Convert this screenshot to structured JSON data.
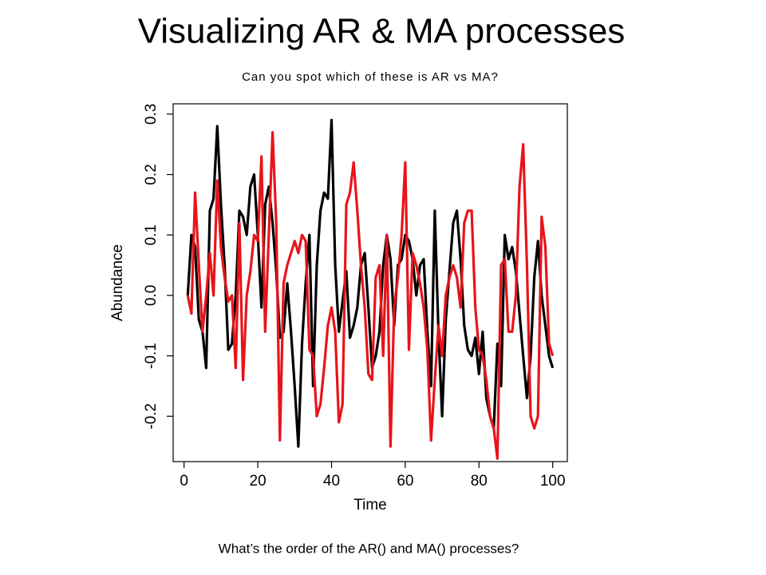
{
  "title": "Visualizing AR & MA processes",
  "caption": "What’s the order of the AR() and MA() processes?",
  "chart_data": {
    "type": "line",
    "title": "Can you spot which of these is AR vs MA?",
    "x_label": "Time",
    "y_label": "Abundance",
    "x": [
      1,
      2,
      3,
      4,
      5,
      6,
      7,
      8,
      9,
      10,
      11,
      12,
      13,
      14,
      15,
      16,
      17,
      18,
      19,
      20,
      21,
      22,
      23,
      24,
      25,
      26,
      27,
      28,
      29,
      30,
      31,
      32,
      33,
      34,
      35,
      36,
      37,
      38,
      39,
      40,
      41,
      42,
      43,
      44,
      45,
      46,
      47,
      48,
      49,
      50,
      51,
      52,
      53,
      54,
      55,
      56,
      57,
      58,
      59,
      60,
      61,
      62,
      63,
      64,
      65,
      66,
      67,
      68,
      69,
      70,
      71,
      72,
      73,
      74,
      75,
      76,
      77,
      78,
      79,
      80,
      81,
      82,
      83,
      84,
      85,
      86,
      87,
      88,
      89,
      90,
      91,
      92,
      93,
      94,
      95,
      96,
      97,
      98,
      99,
      100
    ],
    "series": [
      {
        "color": "#000000",
        "values": [
          0.0,
          0.1,
          0.08,
          -0.04,
          -0.06,
          -0.12,
          0.14,
          0.16,
          0.28,
          0.15,
          0.05,
          -0.09,
          -0.08,
          0.0,
          0.14,
          0.13,
          0.1,
          0.18,
          0.2,
          0.1,
          -0.02,
          0.15,
          0.18,
          0.12,
          0.04,
          -0.07,
          -0.06,
          0.02,
          -0.06,
          -0.15,
          -0.25,
          -0.08,
          0.02,
          0.1,
          -0.15,
          0.05,
          0.14,
          0.17,
          0.16,
          0.29,
          0.05,
          -0.06,
          -0.01,
          0.04,
          -0.07,
          -0.05,
          -0.02,
          0.05,
          0.07,
          -0.02,
          -0.12,
          -0.1,
          -0.06,
          0.05,
          0.1,
          0.06,
          -0.05,
          0.05,
          0.06,
          0.1,
          0.09,
          0.06,
          0.0,
          0.05,
          0.06,
          -0.06,
          -0.15,
          0.14,
          -0.06,
          -0.2,
          -0.04,
          0.04,
          0.12,
          0.14,
          0.06,
          -0.05,
          -0.09,
          -0.1,
          -0.07,
          -0.13,
          -0.06,
          -0.17,
          -0.2,
          -0.22,
          -0.08,
          -0.15,
          0.1,
          0.06,
          0.08,
          0.04,
          -0.03,
          -0.1,
          -0.17,
          -0.1,
          0.03,
          0.09,
          0.0,
          -0.05,
          -0.1,
          -0.12
        ]
      },
      {
        "color": "#e8141a",
        "values": [
          0.0,
          -0.03,
          0.17,
          0.05,
          -0.06,
          0.0,
          0.07,
          0.0,
          0.19,
          0.08,
          0.03,
          -0.01,
          0.0,
          -0.12,
          0.12,
          -0.14,
          0.0,
          0.04,
          0.1,
          0.09,
          0.23,
          -0.06,
          0.1,
          0.27,
          0.12,
          -0.24,
          0.02,
          0.05,
          0.07,
          0.09,
          0.07,
          0.1,
          0.09,
          -0.09,
          -0.1,
          -0.2,
          -0.18,
          -0.12,
          -0.05,
          -0.02,
          -0.06,
          -0.21,
          -0.18,
          0.15,
          0.17,
          0.22,
          0.14,
          0.05,
          -0.02,
          -0.13,
          -0.14,
          0.03,
          0.05,
          -0.1,
          0.1,
          -0.25,
          -0.02,
          0.03,
          0.1,
          0.22,
          -0.09,
          0.07,
          0.05,
          0.02,
          -0.02,
          -0.09,
          -0.24,
          -0.14,
          -0.05,
          -0.1,
          0.0,
          0.03,
          0.05,
          0.03,
          -0.02,
          0.12,
          0.14,
          0.14,
          -0.02,
          -0.09,
          -0.1,
          -0.14,
          -0.2,
          -0.22,
          -0.27,
          0.05,
          0.06,
          -0.06,
          -0.06,
          0.0,
          0.18,
          0.25,
          0.05,
          -0.2,
          -0.22,
          -0.2,
          0.13,
          0.08,
          -0.08,
          -0.1
        ]
      }
    ],
    "xlim": [
      -2.96,
      103.96
    ],
    "ylim": [
      -0.275,
      0.317
    ],
    "xticks": [
      0,
      20,
      40,
      60,
      80,
      100
    ],
    "yticks": [
      -0.2,
      -0.1,
      {
        "value": 0,
        "label": "0.0"
      },
      0.1,
      0.2,
      0.3
    ]
  }
}
